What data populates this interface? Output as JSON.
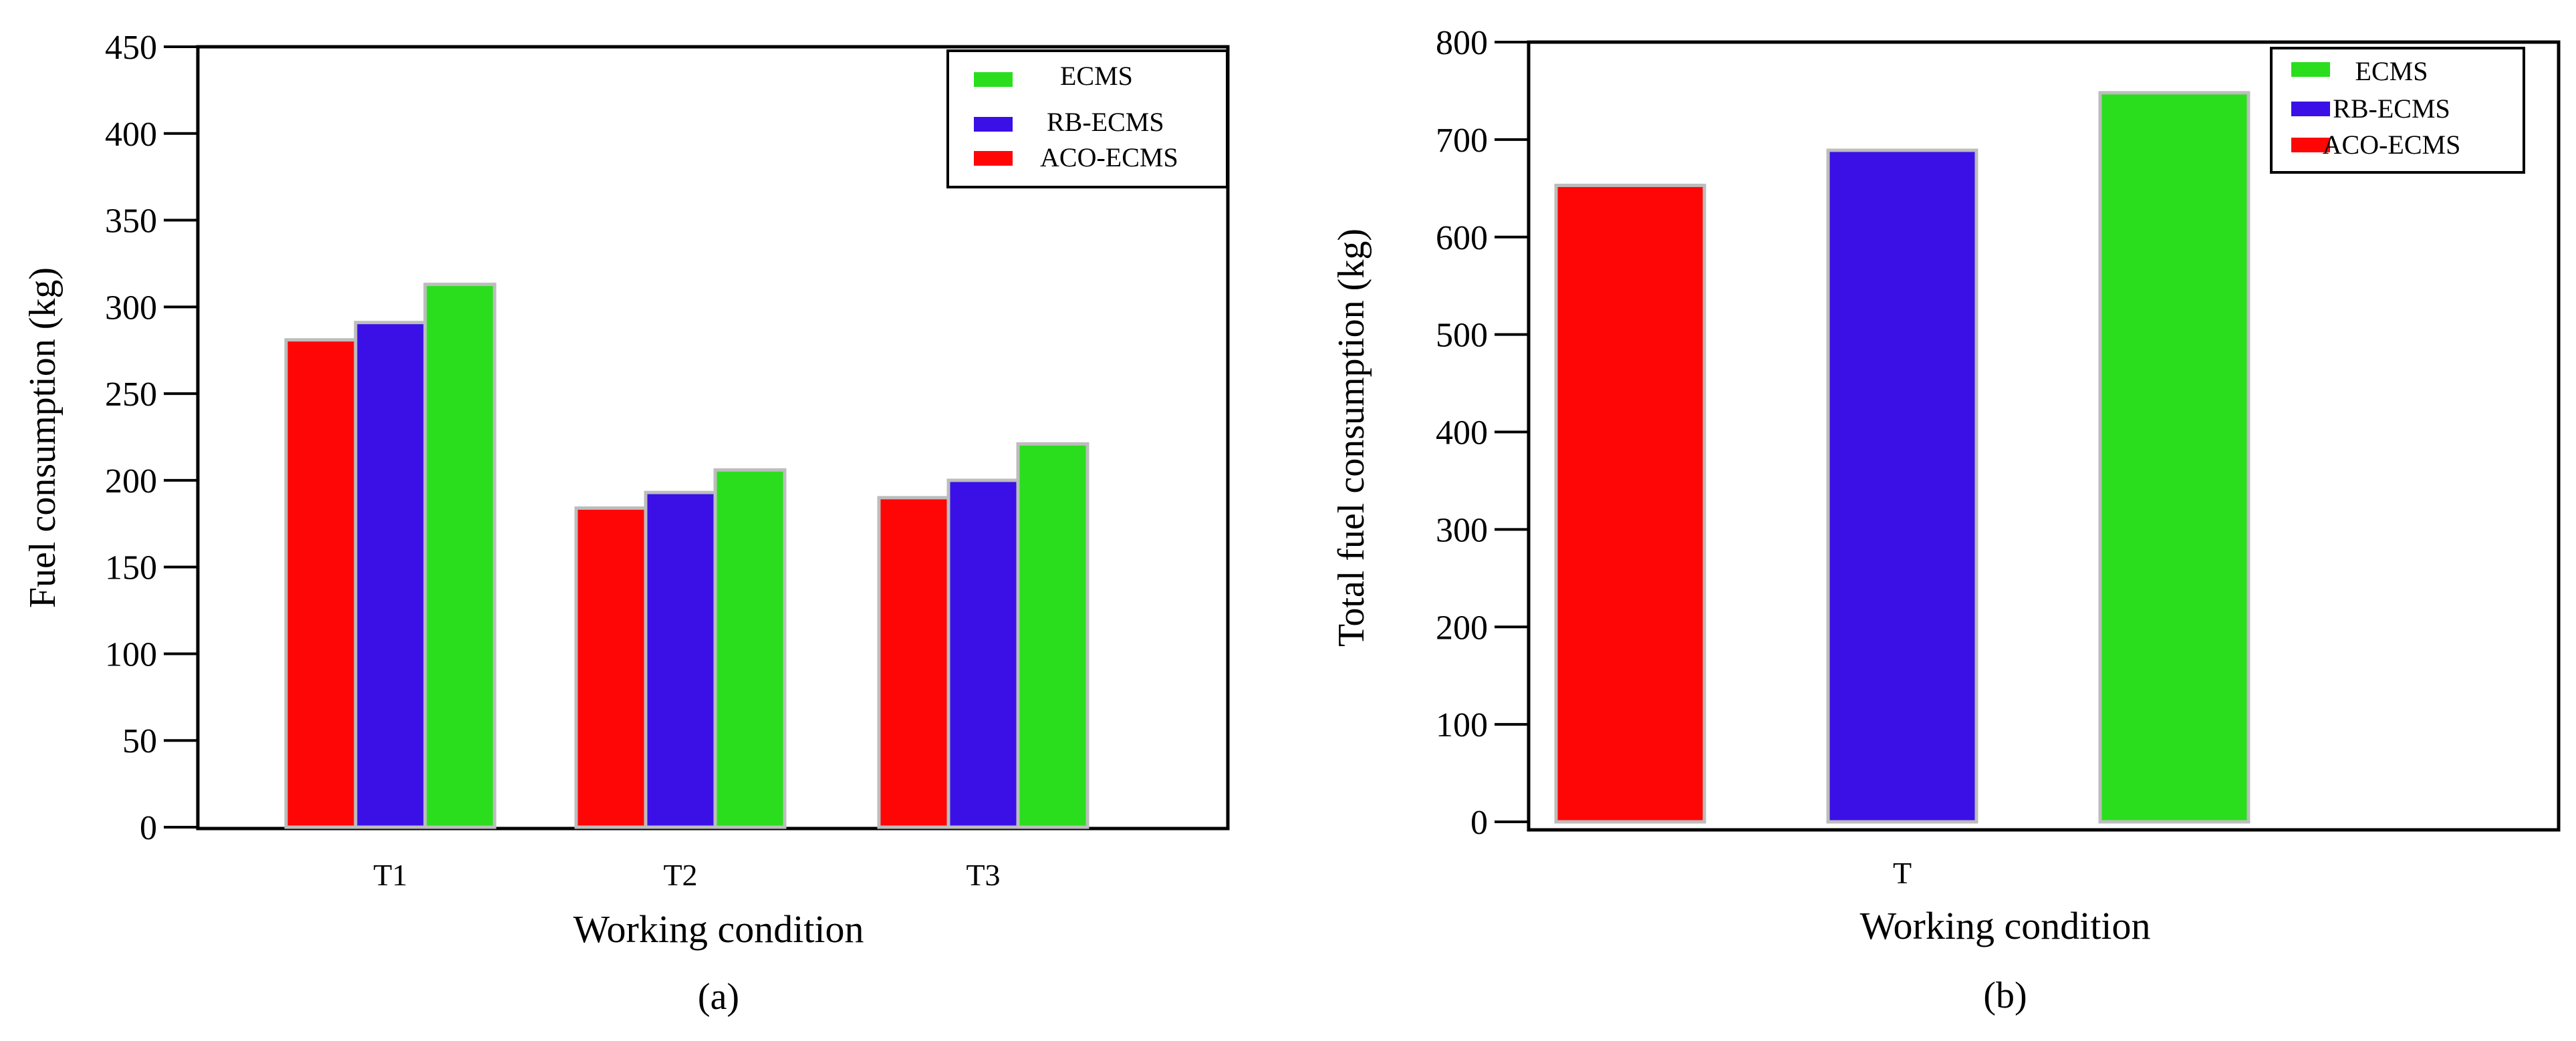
{
  "colors": {
    "ECMS": "#2ade1e",
    "RB-ECMS": "#3a10e6",
    "ACO-ECMS": "#ff0606",
    "bar_edge": "#bdbdbd"
  },
  "chart_data": [
    {
      "type": "bar",
      "title": "",
      "caption": "(a)",
      "xlabel": "Working condition",
      "ylabel": "Fuel consumption (kg)",
      "ylim": [
        0,
        450
      ],
      "yticks": [
        "0",
        "50",
        "100",
        "150",
        "200",
        "250",
        "300",
        "350",
        "400",
        "450"
      ],
      "categories": [
        "T1",
        "T2",
        "T3"
      ],
      "series": [
        {
          "name": "ACO-ECMS",
          "values": [
            281,
            184,
            190
          ]
        },
        {
          "name": "RB-ECMS",
          "values": [
            291,
            193,
            200
          ]
        },
        {
          "name": "ECMS",
          "values": [
            313,
            206,
            221
          ]
        }
      ],
      "legend": {
        "position": "top-right",
        "order": [
          "ECMS",
          "RB-ECMS",
          "ACO-ECMS"
        ]
      }
    },
    {
      "type": "bar",
      "title": "",
      "caption": "(b)",
      "xlabel": "Working condition",
      "ylabel": "Total fuel consumption (kg)",
      "ylim": [
        0,
        800
      ],
      "yticks": [
        "0",
        "100",
        "200",
        "300",
        "400",
        "500",
        "600",
        "700",
        "800"
      ],
      "categories": [
        "T"
      ],
      "series": [
        {
          "name": "ACO-ECMS",
          "values": [
            653
          ]
        },
        {
          "name": "RB-ECMS",
          "values": [
            689
          ]
        },
        {
          "name": "ECMS",
          "values": [
            748
          ]
        }
      ],
      "legend": {
        "position": "top-right",
        "order": [
          "ECMS",
          "RB-ECMS",
          "ACO-ECMS"
        ]
      }
    }
  ]
}
